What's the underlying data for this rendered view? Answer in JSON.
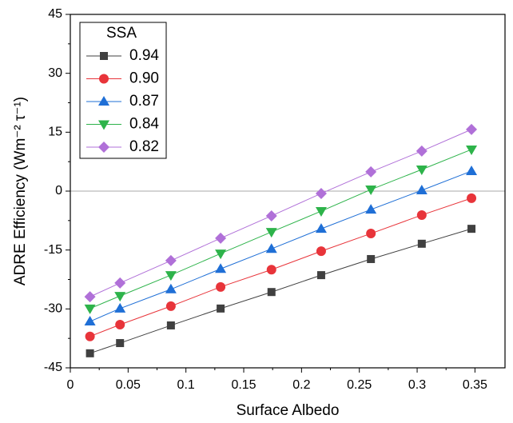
{
  "chart_data": {
    "type": "line",
    "xlabel": "Surface Albedo",
    "ylabel": "ADRE Efficiency (Wm⁻² τ⁻¹)",
    "x": [
      0.017,
      0.043,
      0.087,
      0.13,
      0.174,
      0.217,
      0.26,
      0.304,
      0.347
    ],
    "series": [
      {
        "name": "0.94",
        "color": "#404040",
        "marker": "square",
        "values": [
          -41.3,
          -38.7,
          -34.2,
          -29.9,
          -25.7,
          -21.4,
          -17.3,
          -13.4,
          -9.6
        ]
      },
      {
        "name": "0.90",
        "color": "#e8343a",
        "marker": "circle",
        "values": [
          -37.0,
          -34.0,
          -29.3,
          -24.4,
          -20.0,
          -15.3,
          -10.8,
          -6.1,
          -1.8
        ]
      },
      {
        "name": "0.87",
        "color": "#1f6fd6",
        "marker": "triangle-up",
        "values": [
          -33.2,
          -29.9,
          -25.0,
          -19.8,
          -14.7,
          -9.6,
          -4.7,
          0.2,
          5.1
        ]
      },
      {
        "name": "0.84",
        "color": "#2db34a",
        "marker": "triangle-down",
        "values": [
          -29.9,
          -26.7,
          -21.4,
          -15.9,
          -10.4,
          -5.1,
          0.4,
          5.5,
          10.6
        ]
      },
      {
        "name": "0.82",
        "color": "#b070d8",
        "marker": "diamond",
        "values": [
          -26.9,
          -23.4,
          -17.7,
          -12.0,
          -6.3,
          -0.6,
          4.9,
          10.2,
          15.7
        ]
      }
    ],
    "legend_title": "SSA",
    "legend": "top-left",
    "reference_line": 0,
    "xlim": [
      0,
      0.376
    ],
    "xticks": [
      0,
      0.05,
      0.1,
      0.15,
      0.2,
      0.25,
      0.3,
      0.35
    ],
    "ylim": [
      -45,
      45
    ],
    "yticks": [
      -45,
      -30,
      -15,
      0,
      15,
      30,
      45
    ]
  }
}
